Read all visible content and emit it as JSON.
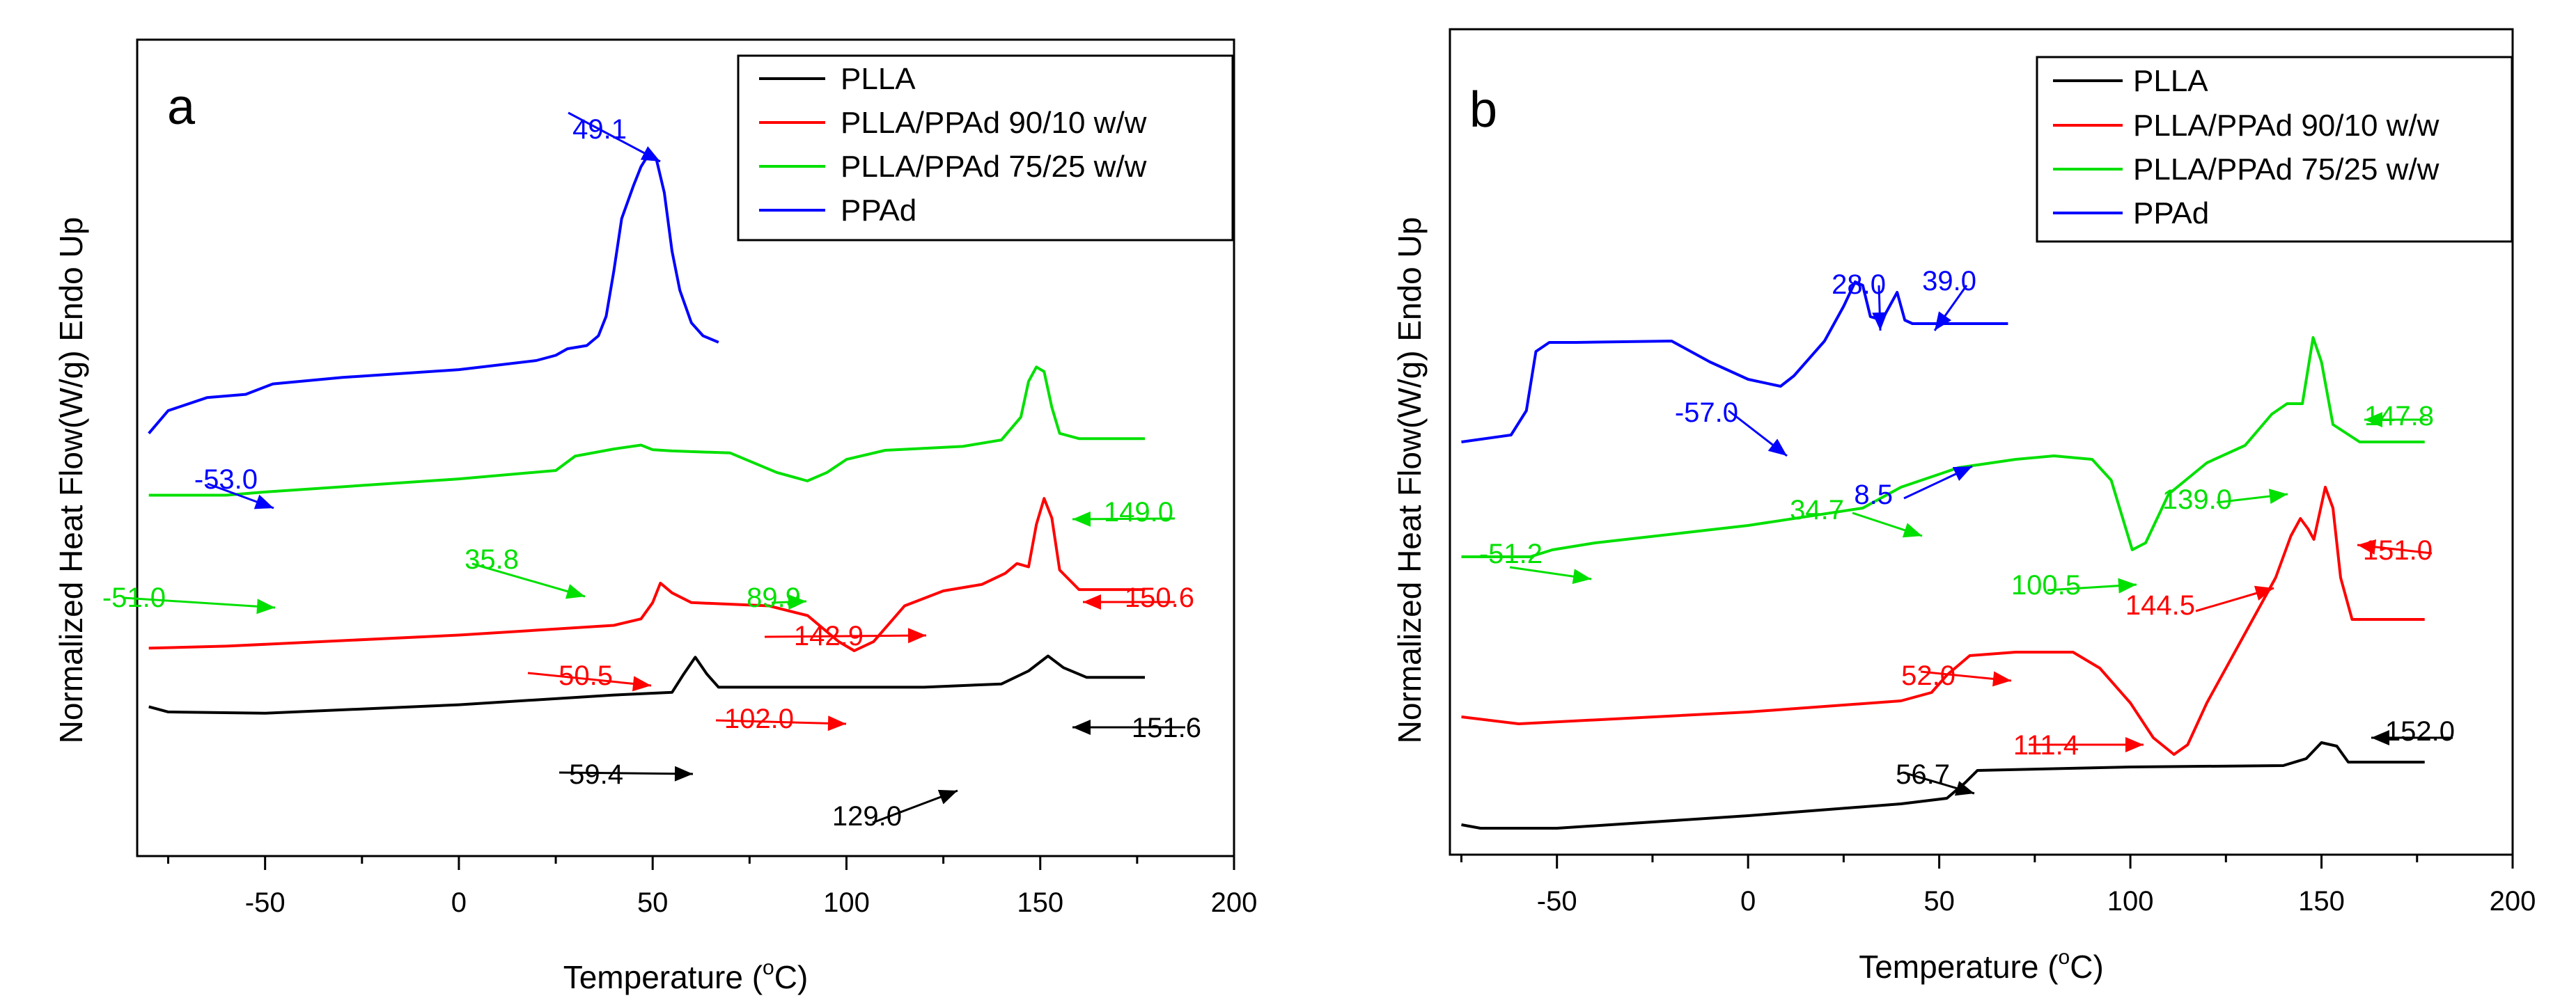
{
  "chart_data": [
    {
      "type": "line",
      "panel_label": "a",
      "xlabel": "Temperature (",
      "xlabel_degree": "o",
      "xlabel_unit": "C)",
      "ylabel": "Normalized Heat Flow(W/g) Endo Up",
      "xlim": [
        -83,
        200
      ],
      "ylim": [
        0,
        100
      ],
      "xticks": [
        -50,
        0,
        50,
        100,
        150,
        200
      ],
      "legend": [
        "PLLA",
        "PLLA/PPAd 90/10 w/w",
        "PLLA/PPAd 75/25 w/w",
        "PPAd"
      ],
      "colors": [
        "#000000",
        "#ff0000",
        "#00e000",
        "#0000ff"
      ],
      "series": [
        {
          "name": "PLLA",
          "points": [
            [
              -80,
              16
            ],
            [
              -75,
              15.2
            ],
            [
              -50,
              15
            ],
            [
              0,
              16.3
            ],
            [
              40,
              17.8
            ],
            [
              55,
              18.2
            ],
            [
              58,
              21
            ],
            [
              61,
              23.6
            ],
            [
              64,
              21
            ],
            [
              67,
              19
            ],
            [
              80,
              19
            ],
            [
              120,
              19
            ],
            [
              140,
              19.5
            ],
            [
              147,
              21.5
            ],
            [
              152,
              23.8
            ],
            [
              156,
              22
            ],
            [
              162,
              20.5
            ],
            [
              177,
              20.5
            ]
          ]
        },
        {
          "name": "PLLA/PPAd 90/10 w/w",
          "points": [
            [
              -80,
              25
            ],
            [
              -60,
              25.3
            ],
            [
              0,
              27
            ],
            [
              40,
              28.5
            ],
            [
              47,
              29.5
            ],
            [
              50,
              32
            ],
            [
              52,
              35
            ],
            [
              55,
              33.5
            ],
            [
              60,
              32
            ],
            [
              80,
              31.5
            ],
            [
              90,
              30
            ],
            [
              98,
              26
            ],
            [
              102,
              24.6
            ],
            [
              107,
              26
            ],
            [
              115,
              31.5
            ],
            [
              125,
              33.8
            ],
            [
              135,
              34.8
            ],
            [
              141,
              36.5
            ],
            [
              144,
              38
            ],
            [
              147,
              37.5
            ],
            [
              149,
              44
            ],
            [
              151,
              48
            ],
            [
              153,
              45
            ],
            [
              155,
              37
            ],
            [
              160,
              34
            ],
            [
              177,
              34
            ]
          ]
        },
        {
          "name": "PLLA/PPAd 75/25 w/w",
          "points": [
            [
              -80,
              48.5
            ],
            [
              -60,
              48.5
            ],
            [
              -50,
              49
            ],
            [
              0,
              51
            ],
            [
              25,
              52.3
            ],
            [
              30,
              54.5
            ],
            [
              40,
              55.6
            ],
            [
              47,
              56.2
            ],
            [
              50,
              55.5
            ],
            [
              55,
              55.3
            ],
            [
              70,
              55
            ],
            [
              82,
              52
            ],
            [
              89.9,
              50.7
            ],
            [
              95,
              52
            ],
            [
              100,
              54
            ],
            [
              110,
              55.4
            ],
            [
              130,
              56
            ],
            [
              140,
              57
            ],
            [
              145,
              60.5
            ],
            [
              147,
              66
            ],
            [
              149,
              68.2
            ],
            [
              151,
              67.5
            ],
            [
              153,
              62
            ],
            [
              155,
              58
            ],
            [
              160,
              57.2
            ],
            [
              177,
              57.2
            ]
          ]
        },
        {
          "name": "PPAd",
          "points": [
            [
              -80,
              58
            ],
            [
              -75,
              61.5
            ],
            [
              -65,
              63.5
            ],
            [
              -55,
              64
            ],
            [
              -48,
              65.6
            ],
            [
              -30,
              66.6
            ],
            [
              0,
              67.8
            ],
            [
              20,
              69.2
            ],
            [
              25,
              70
            ],
            [
              28,
              71
            ],
            [
              33,
              71.5
            ],
            [
              36,
              73
            ],
            [
              38,
              76
            ],
            [
              40,
              83
            ],
            [
              42,
              91
            ],
            [
              45,
              96
            ],
            [
              47,
              99
            ],
            [
              49.1,
              101
            ],
            [
              51,
              100
            ],
            [
              53,
              95
            ],
            [
              55,
              86
            ],
            [
              57,
              80
            ],
            [
              60,
              75
            ],
            [
              63,
              73
            ],
            [
              67,
              72
            ]
          ]
        }
      ],
      "annotations": [
        {
          "text": "49.1",
          "color": "#0000ff"
        },
        {
          "text": "-53.0",
          "color": "#0000ff"
        },
        {
          "text": "149.0",
          "color": "#00e000"
        },
        {
          "text": "35.8",
          "color": "#00e000"
        },
        {
          "text": "-51.0",
          "color": "#00e000"
        },
        {
          "text": "89.9",
          "color": "#00e000"
        },
        {
          "text": "150.6",
          "color": "#ff0000"
        },
        {
          "text": "142.9",
          "color": "#ff0000"
        },
        {
          "text": "50.5",
          "color": "#ff0000"
        },
        {
          "text": "102.0",
          "color": "#ff0000"
        },
        {
          "text": "151.6",
          "color": "#000000"
        },
        {
          "text": "59.4",
          "color": "#000000"
        },
        {
          "text": "129.0",
          "color": "#000000"
        }
      ]
    },
    {
      "type": "line",
      "panel_label": "b",
      "xlabel": "Temperature (",
      "xlabel_degree": "o",
      "xlabel_unit": "C)",
      "ylabel": "Normalized Heat Flow(W/g) Endo Up",
      "xlim": [
        -78,
        200
      ],
      "ylim": [
        0,
        100
      ],
      "xticks": [
        -50,
        0,
        50,
        100,
        150,
        200
      ],
      "legend": [
        "PLLA",
        "PLLA/PPAd 90/10 w/w",
        "PLLA/PPAd 75/25 w/w",
        "PPAd"
      ],
      "colors": [
        "#000000",
        "#ff0000",
        "#00e000",
        "#0000ff"
      ],
      "series": [
        {
          "name": "PLLA",
          "points": [
            [
              -75,
              2.5
            ],
            [
              -70,
              2
            ],
            [
              -50,
              2
            ],
            [
              0,
              3.8
            ],
            [
              40,
              5.5
            ],
            [
              52,
              6.3
            ],
            [
              56.7,
              8.5
            ],
            [
              60,
              10.3
            ],
            [
              100,
              10.8
            ],
            [
              140,
              11
            ],
            [
              146,
              12
            ],
            [
              150,
              14.3
            ],
            [
              154,
              13.8
            ],
            [
              157,
              11.5
            ],
            [
              177,
              11.5
            ]
          ]
        },
        {
          "name": "PLLA/PPAd 90/10 w/w",
          "points": [
            [
              -75,
              18
            ],
            [
              -60,
              17
            ],
            [
              0,
              18.7
            ],
            [
              40,
              20.3
            ],
            [
              48,
              21.5
            ],
            [
              52,
              24
            ],
            [
              58,
              26.8
            ],
            [
              70,
              27.3
            ],
            [
              85,
              27.3
            ],
            [
              92,
              25
            ],
            [
              100,
              20
            ],
            [
              106,
              15
            ],
            [
              111.4,
              12.6
            ],
            [
              115,
              14
            ],
            [
              120,
              20
            ],
            [
              130,
              30
            ],
            [
              138,
              38
            ],
            [
              142,
              44
            ],
            [
              144.5,
              46.5
            ],
            [
              146.5,
              45
            ],
            [
              148,
              43.5
            ],
            [
              151,
              51
            ],
            [
              153,
              48
            ],
            [
              155,
              38
            ],
            [
              158,
              32
            ],
            [
              177,
              32
            ]
          ]
        },
        {
          "name": "PLLA/PPAd 75/25 w/w",
          "points": [
            [
              -75,
              41
            ],
            [
              -57,
              41
            ],
            [
              -51.2,
              42
            ],
            [
              -40,
              43
            ],
            [
              0,
              45.5
            ],
            [
              30,
              48
            ],
            [
              40,
              51
            ],
            [
              55,
              53.8
            ],
            [
              70,
              55
            ],
            [
              80,
              55.5
            ],
            [
              90,
              55
            ],
            [
              95,
              52
            ],
            [
              100.5,
              42
            ],
            [
              104,
              43
            ],
            [
              110,
              50
            ],
            [
              120,
              54.5
            ],
            [
              130,
              57
            ],
            [
              137,
              61.5
            ],
            [
              141,
              63
            ],
            [
              145,
              63
            ],
            [
              147.8,
              72.5
            ],
            [
              150,
              69
            ],
            [
              153,
              60
            ],
            [
              160,
              57.5
            ],
            [
              177,
              57.5
            ]
          ]
        },
        {
          "name": "PPAd",
          "points": [
            [
              -75,
              57.5
            ],
            [
              -62,
              58.5
            ],
            [
              -58,
              62
            ],
            [
              -55.5,
              70.5
            ],
            [
              -52,
              71.8
            ],
            [
              -45,
              71.8
            ],
            [
              -20,
              72
            ],
            [
              -10,
              69
            ],
            [
              0,
              66.5
            ],
            [
              8.5,
              65.5
            ],
            [
              12,
              67
            ],
            [
              20,
              72
            ],
            [
              25,
              77
            ],
            [
              28,
              80.5
            ],
            [
              30,
              80
            ],
            [
              32,
              75.5
            ],
            [
              35,
              75
            ],
            [
              37,
              77
            ],
            [
              39,
              79
            ],
            [
              41,
              75
            ],
            [
              43,
              74.5
            ],
            [
              50,
              74.5
            ],
            [
              68,
              74.5
            ]
          ]
        }
      ],
      "annotations": [
        {
          "text": "-57.0",
          "color": "#0000ff"
        },
        {
          "text": "28.0",
          "color": "#0000ff"
        },
        {
          "text": "39.0",
          "color": "#0000ff"
        },
        {
          "text": "8.5",
          "color": "#0000ff"
        },
        {
          "text": "34.7",
          "color": "#00e000"
        },
        {
          "text": "139.0",
          "color": "#00e000"
        },
        {
          "text": "147.8",
          "color": "#00e000"
        },
        {
          "text": "-51.2",
          "color": "#00e000"
        },
        {
          "text": "100.5",
          "color": "#00e000"
        },
        {
          "text": "144.5",
          "color": "#ff0000"
        },
        {
          "text": "151.0",
          "color": "#ff0000"
        },
        {
          "text": "52.0",
          "color": "#ff0000"
        },
        {
          "text": "111.4",
          "color": "#ff0000"
        },
        {
          "text": "56.7",
          "color": "#000000"
        },
        {
          "text": "152.0",
          "color": "#000000"
        }
      ]
    }
  ]
}
